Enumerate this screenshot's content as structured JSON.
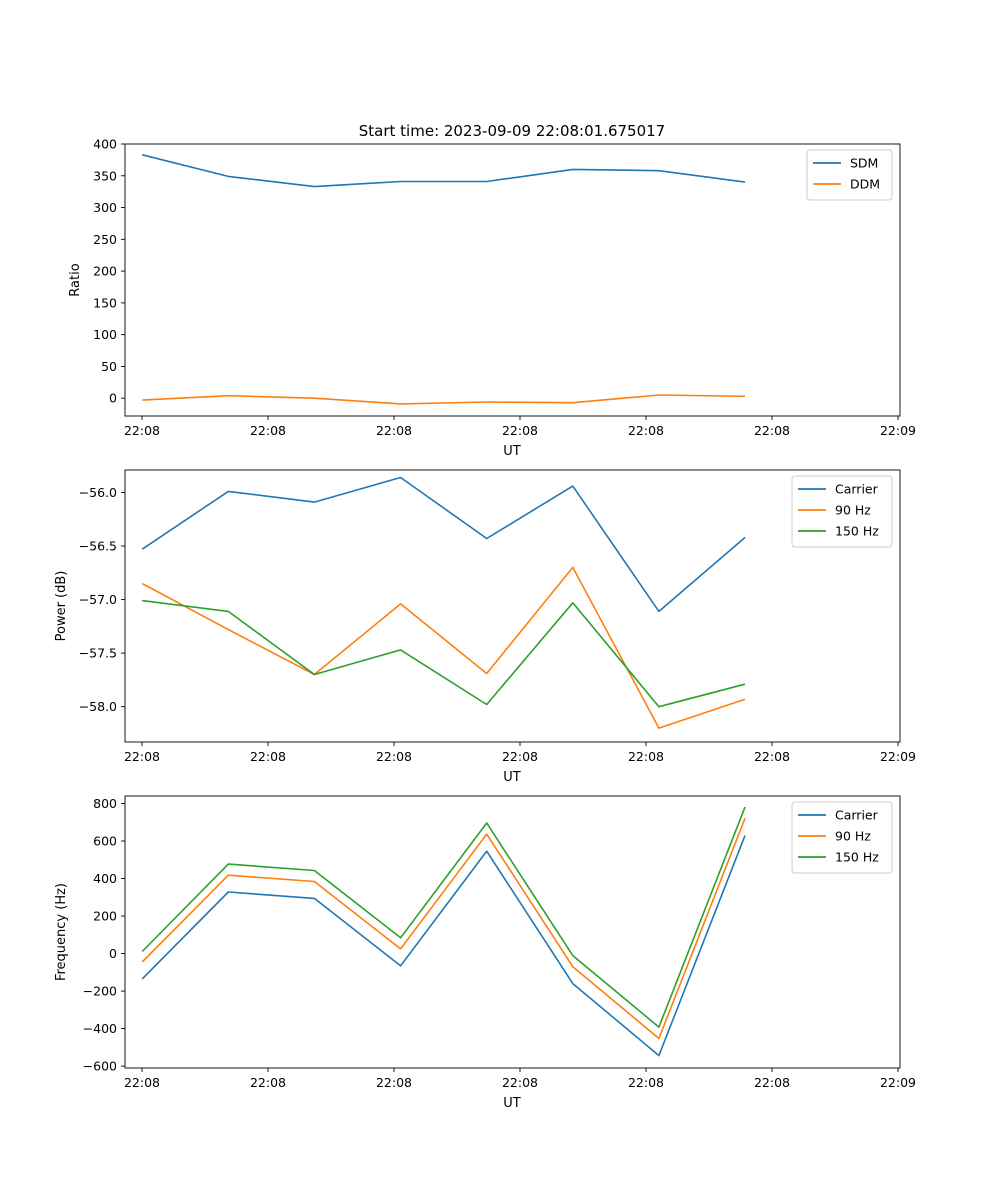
{
  "figure_title": "Start time: 2023-09-09 22:08:01.675017",
  "chart_data": [
    {
      "type": "line",
      "title": "Start time: 2023-09-09 22:08:01.675017",
      "xlabel": "UT",
      "ylabel": "Ratio",
      "x_tick_labels": [
        "22:08",
        "22:08",
        "22:08",
        "22:08",
        "22:08",
        "22:08",
        "22:09"
      ],
      "y_ticks": [
        0,
        50,
        100,
        150,
        200,
        250,
        300,
        350,
        400
      ],
      "y_tick_labels": [
        "0",
        "50",
        "100",
        "150",
        "200",
        "250",
        "300",
        "350",
        "400"
      ],
      "ylim": [
        -28,
        400
      ],
      "x_index_range": [
        -0.2,
        8.8
      ],
      "x": [
        0,
        1,
        2,
        3,
        4,
        5,
        6,
        7
      ],
      "legend_position": "top-right",
      "series": [
        {
          "name": "SDM",
          "color": "#1f77b4",
          "values": [
            383,
            349,
            333,
            341,
            341,
            360,
            358,
            340
          ]
        },
        {
          "name": "DDM",
          "color": "#ff7f0e",
          "values": [
            -3,
            4,
            0,
            -9,
            -6,
            -7,
            5,
            3
          ]
        }
      ]
    },
    {
      "type": "line",
      "xlabel": "UT",
      "ylabel": "Power (dB)",
      "x_tick_labels": [
        "22:08",
        "22:08",
        "22:08",
        "22:08",
        "22:08",
        "22:08",
        "22:09"
      ],
      "y_ticks": [
        -58.0,
        -57.5,
        -57.0,
        -56.5,
        -56.0
      ],
      "y_tick_labels": [
        "−58.0",
        "−57.5",
        "−57.0",
        "−56.5",
        "−56.0"
      ],
      "ylim": [
        -58.33,
        -55.79
      ],
      "x_index_range": [
        -0.2,
        8.8
      ],
      "x": [
        0,
        1,
        2,
        3,
        4,
        5,
        6,
        7
      ],
      "legend_position": "top-right",
      "series": [
        {
          "name": "Carrier",
          "color": "#1f77b4",
          "values": [
            -56.53,
            -55.99,
            -56.09,
            -55.86,
            -56.43,
            -55.94,
            -57.11,
            -56.42
          ]
        },
        {
          "name": "90 Hz",
          "color": "#ff7f0e",
          "values": [
            -56.85,
            -57.28,
            -57.7,
            -57.04,
            -57.69,
            -56.7,
            -58.2,
            -57.93
          ]
        },
        {
          "name": "150 Hz",
          "color": "#2ca02c",
          "values": [
            -57.01,
            -57.11,
            -57.7,
            -57.47,
            -57.98,
            -57.03,
            -58.0,
            -57.79
          ]
        }
      ]
    },
    {
      "type": "line",
      "xlabel": "UT",
      "ylabel": "Frequency (Hz)",
      "x_tick_labels": [
        "22:08",
        "22:08",
        "22:08",
        "22:08",
        "22:08",
        "22:08",
        "22:09"
      ],
      "y_ticks": [
        -600,
        -400,
        -200,
        0,
        200,
        400,
        600,
        800
      ],
      "y_tick_labels": [
        "−600",
        "−400",
        "−200",
        "0",
        "200",
        "400",
        "600",
        "800"
      ],
      "ylim": [
        -610,
        840
      ],
      "x_index_range": [
        -0.2,
        8.8
      ],
      "x": [
        0,
        1,
        2,
        3,
        4,
        5,
        6,
        7
      ],
      "legend_position": "top-right",
      "series": [
        {
          "name": "Carrier",
          "color": "#1f77b4",
          "values": [
            -135,
            328,
            294,
            -65,
            546,
            -160,
            -544,
            629
          ]
        },
        {
          "name": "90 Hz",
          "color": "#ff7f0e",
          "values": [
            -45,
            418,
            384,
            25,
            637,
            -70,
            -453,
            721
          ]
        },
        {
          "name": "150 Hz",
          "color": "#2ca02c",
          "values": [
            11,
            477,
            443,
            84,
            696,
            -11,
            -392,
            781
          ]
        }
      ]
    }
  ]
}
